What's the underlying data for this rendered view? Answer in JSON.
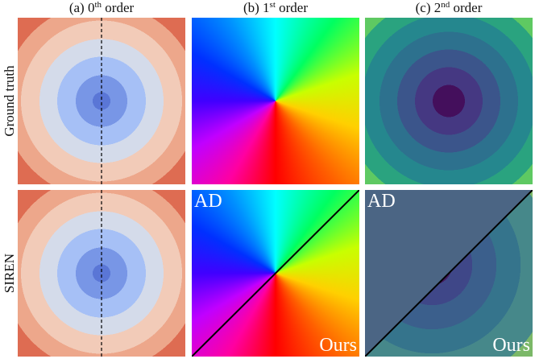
{
  "columns": [
    {
      "prefix": "(a) 0",
      "sup": "th",
      "suffix": " order"
    },
    {
      "prefix": "(b) 1",
      "sup": "st",
      "suffix": " order"
    },
    {
      "prefix": "(c) 2",
      "sup": "nd",
      "suffix": " order"
    }
  ],
  "rows": [
    "Ground truth",
    "SIREN"
  ],
  "panels": [
    {
      "top": "AD",
      "bottom": "Ours"
    },
    {
      "top": "AD",
      "bottom": "Ours"
    }
  ]
}
